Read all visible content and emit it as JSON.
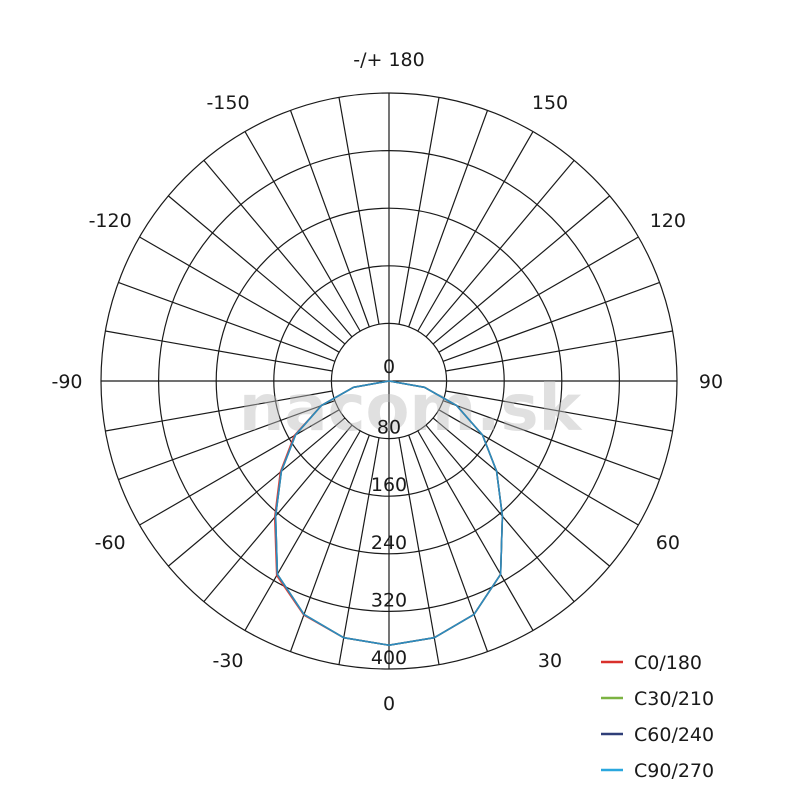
{
  "chart_data": {
    "type": "polar",
    "radial_axis": {
      "range": [
        0,
        400
      ],
      "ticks": [
        0,
        80,
        160,
        240,
        320,
        400
      ],
      "tick_labels": [
        "0",
        "80",
        "160",
        "240",
        "320",
        "400"
      ]
    },
    "angular_axis": {
      "tick_step_deg": 10,
      "labels": [
        {
          "angle": 0,
          "text": "0"
        },
        {
          "angle": 30,
          "text": "30"
        },
        {
          "angle": 60,
          "text": "60"
        },
        {
          "angle": 90,
          "text": "90"
        },
        {
          "angle": 120,
          "text": "120"
        },
        {
          "angle": 150,
          "text": "150"
        },
        {
          "angle": 180,
          "text": "-/+ 180"
        },
        {
          "angle": -150,
          "text": "-150"
        },
        {
          "angle": -120,
          "text": "-120"
        },
        {
          "angle": -90,
          "text": "-90"
        },
        {
          "angle": -60,
          "text": "-60"
        },
        {
          "angle": -30,
          "text": "-30"
        }
      ]
    },
    "grid": true,
    "legend_position": "bottom-right",
    "gamma": [
      -90,
      -80,
      -70,
      -60,
      -50,
      -40,
      -30,
      -20,
      -10,
      0,
      10,
      20,
      30,
      40,
      50,
      60,
      70,
      80,
      90
    ],
    "series": [
      {
        "name": "C0/180",
        "color": "#d9302b",
        "values": [
          0,
          50,
          100,
          152,
          197,
          247,
          312,
          346,
          362,
          367,
          362,
          345,
          310,
          245,
          195,
          150,
          100,
          50,
          0
        ]
      },
      {
        "name": "C30/210",
        "color": "#7cb342",
        "values": [
          0,
          50,
          100,
          150,
          195,
          245,
          310,
          345,
          362,
          367,
          362,
          345,
          310,
          245,
          195,
          150,
          100,
          50,
          0
        ]
      },
      {
        "name": "C60/240",
        "color": "#2f3e78",
        "values": [
          0,
          50,
          100,
          150,
          195,
          245,
          310,
          345,
          362,
          367,
          362,
          345,
          310,
          245,
          195,
          150,
          100,
          50,
          0
        ]
      },
      {
        "name": "C90/270",
        "color": "#2aa7de",
        "values": [
          0,
          50,
          100,
          150,
          195,
          245,
          310,
          345,
          362,
          367,
          362,
          345,
          310,
          245,
          195,
          150,
          100,
          50,
          0
        ]
      }
    ]
  },
  "watermark": "nacom.sk"
}
